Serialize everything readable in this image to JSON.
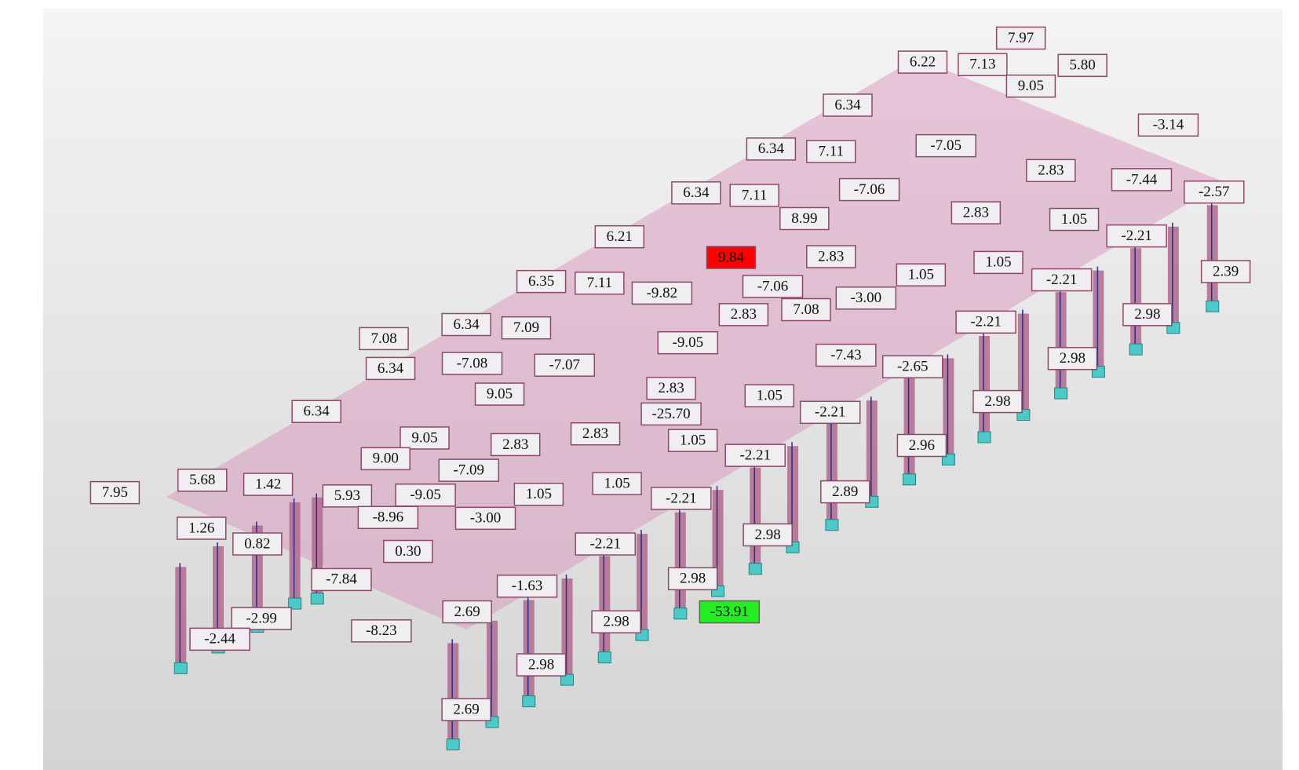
{
  "labels": [
    {
      "text": "7.97"
    },
    {
      "text": "6.22"
    },
    {
      "text": "7.13"
    },
    {
      "text": "5.80"
    },
    {
      "text": "9.05"
    },
    {
      "text": "6.34"
    },
    {
      "text": "-3.14"
    },
    {
      "text": "-7.05"
    },
    {
      "text": "6.34"
    },
    {
      "text": "7.11"
    },
    {
      "text": "2.83"
    },
    {
      "text": "-7.44"
    },
    {
      "text": "-2.57"
    },
    {
      "text": "-7.06"
    },
    {
      "text": "6.34"
    },
    {
      "text": "7.11"
    },
    {
      "text": "2.83"
    },
    {
      "text": "8.99"
    },
    {
      "text": "1.05"
    },
    {
      "text": "-2.21"
    },
    {
      "text": "6.21"
    },
    {
      "text": "9.84",
      "color": "#ff0000"
    },
    {
      "text": "2.83"
    },
    {
      "text": "1.05"
    },
    {
      "text": "2.39"
    },
    {
      "text": "6.35"
    },
    {
      "text": "7.11"
    },
    {
      "text": "-9.82"
    },
    {
      "text": "-7.06"
    },
    {
      "text": "1.05"
    },
    {
      "text": "-2.21"
    },
    {
      "text": "-3.00"
    },
    {
      "text": "2.83"
    },
    {
      "text": "7.08"
    },
    {
      "text": "-2.21"
    },
    {
      "text": "2.98"
    },
    {
      "text": "7.08"
    },
    {
      "text": "6.34"
    },
    {
      "text": "7.09"
    },
    {
      "text": "-7.08"
    },
    {
      "text": "-7.07"
    },
    {
      "text": "-9.05"
    },
    {
      "text": "-7.43"
    },
    {
      "text": "-2.65"
    },
    {
      "text": "2.98"
    },
    {
      "text": "6.34"
    },
    {
      "text": "9.05"
    },
    {
      "text": "2.83"
    },
    {
      "text": "1.05"
    },
    {
      "text": "2.98"
    },
    {
      "text": "6.34"
    },
    {
      "text": "-25.70"
    },
    {
      "text": "-2.21"
    },
    {
      "text": "9.05"
    },
    {
      "text": "2.83"
    },
    {
      "text": "2.83"
    },
    {
      "text": "1.05"
    },
    {
      "text": "-2.21"
    },
    {
      "text": "2.96"
    },
    {
      "text": "9.00"
    },
    {
      "text": "-7.09"
    },
    {
      "text": "5.68"
    },
    {
      "text": "1.42"
    },
    {
      "text": "7.95"
    },
    {
      "text": "5.93"
    },
    {
      "text": "-9.05"
    },
    {
      "text": "1.05"
    },
    {
      "text": "1.05"
    },
    {
      "text": "-2.21"
    },
    {
      "text": "2.89"
    },
    {
      "text": "-8.96"
    },
    {
      "text": "-3.00"
    },
    {
      "text": "1.26"
    },
    {
      "text": "0.82"
    },
    {
      "text": "0.30"
    },
    {
      "text": "-2.21"
    },
    {
      "text": "2.98"
    },
    {
      "text": "-7.84"
    },
    {
      "text": "2.98"
    },
    {
      "text": "-1.63"
    },
    {
      "text": "-53.91",
      "color": "#22ee22"
    },
    {
      "text": "2.69"
    },
    {
      "text": "-2.99"
    },
    {
      "text": "2.98"
    },
    {
      "text": "-8.23"
    },
    {
      "text": "-2.44"
    },
    {
      "text": "2.98"
    },
    {
      "text": "2.69"
    }
  ]
}
